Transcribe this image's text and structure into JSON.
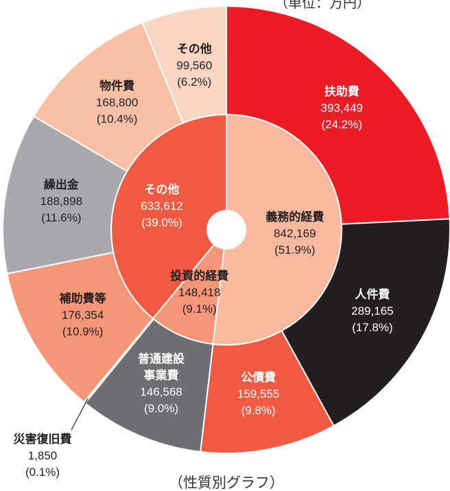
{
  "chart_data": {
    "type": "pie",
    "title": "（単位：万円）",
    "caption": "（性質別グラフ）",
    "series": [
      {
        "categories": [
          "義務的経費",
          "投資的経費",
          "その他"
        ],
        "values": [
          842169,
          148418,
          633612
        ],
        "value_labels": [
          "842,169",
          "148,418",
          "633,612"
        ],
        "percents": [
          51.9,
          9.1,
          39.0
        ],
        "percent_labels": [
          "(51.9%)",
          "(9.1%)",
          "(39.0%)"
        ],
        "colors": [
          "#f9b99f",
          "#f69679",
          "#f15a40"
        ]
      },
      {
        "categories": [
          "扶助費",
          "人件費",
          "公債費",
          "普通建設事業費",
          "災害復旧費",
          "補助費等",
          "繰出金",
          "物件費",
          "その他"
        ],
        "values": [
          393449,
          289165,
          159555,
          146568,
          1850,
          176354,
          188898,
          168800,
          99560
        ],
        "value_labels": [
          "393,449",
          "289,165",
          "159,555",
          "146,568",
          "1,850",
          "176,354",
          "188,898",
          "168,800",
          "99,560"
        ],
        "percents": [
          24.2,
          17.8,
          9.8,
          9.0,
          0.1,
          10.9,
          11.6,
          10.4,
          6.2
        ],
        "percent_labels": [
          "(24.2%)",
          "(17.8%)",
          "(9.8%)",
          "(9.0%)",
          "(0.1%)",
          "(10.9%)",
          "(11.6%)",
          "(10.4%)",
          "(6.2%)"
        ],
        "colors": [
          "#ed1c24",
          "#231f20",
          "#f15a40",
          "#6d6e71",
          "#f9b99f",
          "#f69679",
          "#a7a9ac",
          "#f9c0a6",
          "#fbd5c4"
        ]
      }
    ]
  }
}
